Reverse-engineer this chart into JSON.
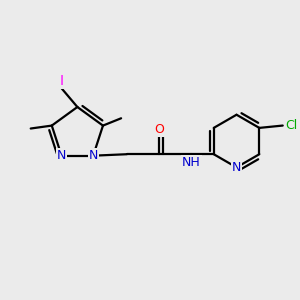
{
  "background_color": "#ebebeb",
  "bond_color": "#000000",
  "atom_colors": {
    "N": "#0000cd",
    "O": "#ff0000",
    "Cl": "#00aa00",
    "I": "#ff00ff",
    "C": "#000000",
    "H": "#000000"
  },
  "font_size": 9.0,
  "bond_width": 1.6,
  "bg": "#ebebeb"
}
